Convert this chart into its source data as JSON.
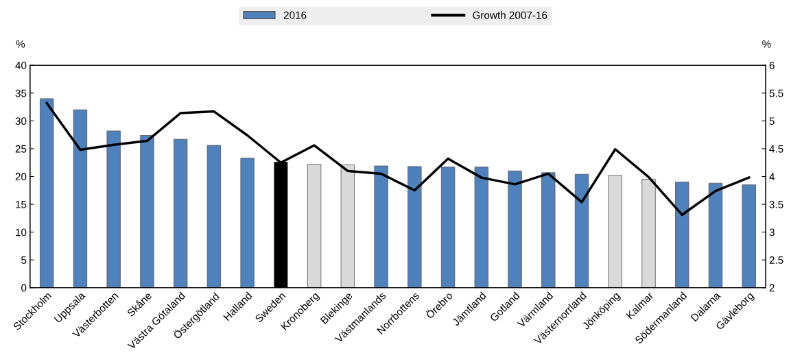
{
  "chart_data": {
    "type": "bar",
    "ylabel": "%",
    "y2label": "%",
    "legend": "top",
    "grid": false,
    "categories": [
      "Stockholm",
      "Uppsala",
      "Västerbotten",
      "Skåne",
      "Västra Götaland",
      "Östergötland",
      "Halland",
      "Sweden",
      "Kronoberg",
      "Blekinge",
      "Västmanlands",
      "Norrbottens",
      "Örebro",
      "Jämtland",
      "Gotland",
      "Värmland",
      "Västernorrland",
      "Jönköping",
      "Kalmar",
      "Södermanland",
      "Dalarna",
      "Gävleborg"
    ],
    "ylim": [
      0,
      40
    ],
    "yticks": [
      0,
      5,
      10,
      15,
      20,
      25,
      30,
      35,
      40
    ],
    "y2lim": [
      2,
      6
    ],
    "y2ticks": [
      2,
      2.5,
      3,
      3.5,
      4,
      4.5,
      5,
      5.5,
      6
    ],
    "series": [
      {
        "name": "2016",
        "color": "#4f81bd",
        "colors": [
          "#4f81bd",
          "#4f81bd",
          "#4f81bd",
          "#4f81bd",
          "#4f81bd",
          "#4f81bd",
          "#4f81bd",
          "#000000",
          "#d9d9d9",
          "#d9d9d9",
          "#4f81bd",
          "#4f81bd",
          "#4f81bd",
          "#4f81bd",
          "#4f81bd",
          "#4f81bd",
          "#4f81bd",
          "#d9d9d9",
          "#d9d9d9",
          "#4f81bd",
          "#4f81bd",
          "#4f81bd"
        ],
        "values": [
          34,
          32,
          28.2,
          27.4,
          26.7,
          25.6,
          23.3,
          22.6,
          22.2,
          22.1,
          21.9,
          21.8,
          21.7,
          21.7,
          21.0,
          20.7,
          20.4,
          20.2,
          19.5,
          19.0,
          18.8,
          18.5
        ]
      },
      {
        "name": "Growth 2007-16",
        "type": "line",
        "axis": "y2",
        "color": "#000000",
        "values": [
          5.32,
          4.48,
          4.57,
          4.64,
          5.14,
          5.17,
          4.74,
          4.25,
          4.56,
          4.1,
          4.05,
          3.75,
          4.32,
          3.98,
          3.86,
          4.05,
          3.54,
          4.49,
          3.99,
          3.31,
          3.74,
          3.98
        ]
      }
    ]
  }
}
